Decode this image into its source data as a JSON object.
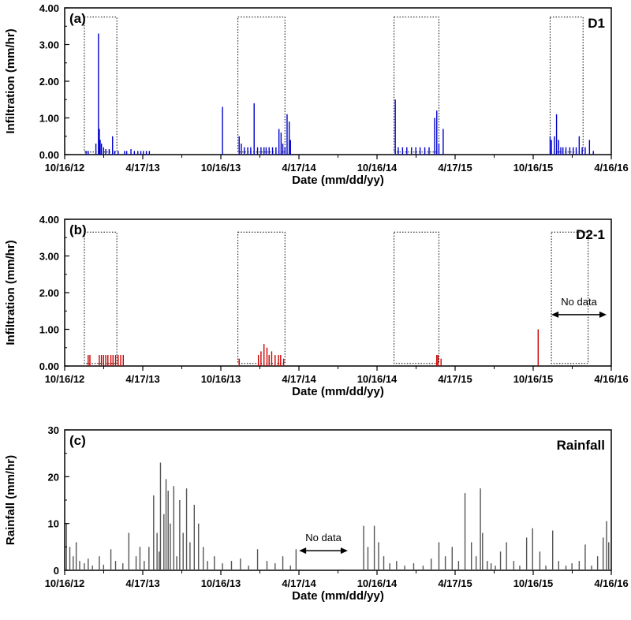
{
  "chart_data": [
    {
      "type": "bar",
      "panel_label": "(a)",
      "series_label": "D1",
      "xlabel": "Date (mm/dd/yy)",
      "ylabel": "Infiltration (mm/hr)",
      "ylim": [
        0,
        4
      ],
      "yticks": [
        "0.00",
        "1.00",
        "2.00",
        "3.00",
        "4.00"
      ],
      "xlim": [
        "2012-10-16",
        "2016-04-16"
      ],
      "xticks": [
        "10/16/12",
        "4/17/13",
        "10/16/13",
        "4/17/14",
        "10/16/14",
        "4/17/15",
        "10/16/15",
        "4/16/16"
      ],
      "color": "#0000cc",
      "boxes": [
        {
          "start": "2012-12-01",
          "end": "2013-02-15",
          "ymax": 3.75
        },
        {
          "start": "2013-11-25",
          "end": "2014-03-15",
          "ymax": 3.75
        },
        {
          "start": "2014-11-25",
          "end": "2015-03-10",
          "ymax": 3.75
        },
        {
          "start": "2015-11-25",
          "end": "2016-02-10",
          "ymax": 3.75
        }
      ],
      "series": [
        {
          "x": [
            "2012-12-05",
            "2012-12-10",
            "2012-12-28",
            "2013-01-03",
            "2013-01-05",
            "2013-01-07",
            "2013-01-10",
            "2013-01-15",
            "2013-01-20",
            "2013-01-28",
            "2013-02-05",
            "2013-02-10",
            "2013-02-18",
            "2013-03-05",
            "2013-03-10",
            "2013-03-20",
            "2013-03-28",
            "2013-04-05",
            "2013-04-12",
            "2013-04-18",
            "2013-04-25",
            "2013-05-02",
            "2013-10-20",
            "2013-11-28",
            "2013-12-03",
            "2013-12-10",
            "2013-12-18",
            "2013-12-25",
            "2014-01-02",
            "2014-01-10",
            "2014-01-18",
            "2014-01-25",
            "2014-01-30",
            "2014-02-06",
            "2014-02-14",
            "2014-02-22",
            "2014-03-01",
            "2014-03-06",
            "2014-03-10",
            "2014-03-15",
            "2014-03-20",
            "2014-03-25",
            "2014-03-28",
            "2014-11-28",
            "2014-12-05",
            "2014-12-15",
            "2014-12-25",
            "2015-01-05",
            "2015-01-15",
            "2015-01-25",
            "2015-02-05",
            "2015-02-15",
            "2015-02-28",
            "2015-03-05",
            "2015-03-10",
            "2015-03-20",
            "2015-11-25",
            "2015-11-28",
            "2015-12-05",
            "2015-12-10",
            "2015-12-15",
            "2015-12-20",
            "2015-12-25",
            "2016-01-01",
            "2016-01-10",
            "2016-01-18",
            "2016-01-25",
            "2016-02-01",
            "2016-02-08",
            "2016-02-15",
            "2016-02-25",
            "2016-03-05"
          ],
          "values": [
            0.1,
            0.1,
            0.3,
            3.3,
            0.7,
            0.4,
            0.3,
            0.2,
            0.15,
            0.15,
            0.5,
            0.1,
            0.1,
            0.1,
            0.1,
            0.15,
            0.1,
            0.1,
            0.1,
            0.1,
            0.1,
            0.1,
            1.3,
            0.5,
            0.3,
            0.2,
            0.2,
            0.2,
            1.4,
            0.2,
            0.2,
            0.2,
            0.2,
            0.2,
            0.2,
            0.2,
            0.7,
            0.6,
            0.3,
            0.2,
            1.1,
            0.9,
            0.4,
            1.5,
            0.2,
            0.2,
            0.2,
            0.2,
            0.2,
            0.2,
            0.2,
            0.2,
            1.0,
            1.2,
            0.3,
            0.7,
            0.5,
            0.4,
            0.5,
            1.1,
            0.4,
            0.2,
            0.2,
            0.2,
            0.2,
            0.2,
            0.2,
            0.5,
            0.2,
            0.2,
            0.4,
            0.1
          ]
        }
      ]
    },
    {
      "type": "bar",
      "panel_label": "(b)",
      "series_label": "D2-1",
      "xlabel": "Date (mm/dd/yy)",
      "ylabel": "Infiltration (mm/hr)",
      "ylim": [
        0,
        4
      ],
      "yticks": [
        "0.00",
        "1.00",
        "2.00",
        "3.00",
        "4.00"
      ],
      "xlim": [
        "2012-10-16",
        "2016-04-16"
      ],
      "xticks": [
        "10/16/12",
        "4/17/13",
        "10/16/13",
        "4/17/14",
        "10/16/14",
        "4/17/15",
        "10/16/15",
        "4/16/16"
      ],
      "color": "#cc0000",
      "annotation": {
        "text": "No data",
        "start": "2015-11-28",
        "end": "2016-04-16",
        "y": 1.4
      },
      "boxes": [
        {
          "start": "2012-12-01",
          "end": "2013-02-15",
          "ymax": 3.65
        },
        {
          "start": "2013-11-25",
          "end": "2014-03-15",
          "ymax": 3.65
        },
        {
          "start": "2014-11-25",
          "end": "2015-03-10",
          "ymax": 3.65
        },
        {
          "start": "2015-11-28",
          "end": "2016-02-22",
          "ymax": 3.65
        }
      ],
      "series": [
        {
          "x": [
            "2012-12-10",
            "2012-12-14",
            "2013-01-05",
            "2013-01-10",
            "2013-01-15",
            "2013-01-20",
            "2013-01-25",
            "2013-02-01",
            "2013-02-06",
            "2013-02-12",
            "2013-02-18",
            "2013-02-24",
            "2013-03-02",
            "2013-11-28",
            "2014-01-12",
            "2014-01-18",
            "2014-01-25",
            "2014-02-01",
            "2014-02-06",
            "2014-02-12",
            "2014-02-20",
            "2014-02-28",
            "2014-03-05",
            "2014-03-12",
            "2015-03-05",
            "2015-03-08",
            "2015-03-15",
            "2015-10-28"
          ],
          "values": [
            0.3,
            0.3,
            0.3,
            0.3,
            0.3,
            0.3,
            0.3,
            0.3,
            0.3,
            0.3,
            0.3,
            0.3,
            0.3,
            0.2,
            0.3,
            0.4,
            0.6,
            0.5,
            0.3,
            0.4,
            0.3,
            0.3,
            0.3,
            0.2,
            0.3,
            0.3,
            0.2,
            1.0
          ]
        }
      ]
    },
    {
      "type": "bar",
      "panel_label": "(c)",
      "series_label": "Rainfall",
      "xlabel": "Date (mm/dd/yy)",
      "ylabel": "Rainfall (mm/hr)",
      "ylim": [
        0,
        30
      ],
      "yticks": [
        "0",
        "10",
        "20",
        "30"
      ],
      "xlim": [
        "2012-10-16",
        "2016-04-16"
      ],
      "xticks": [
        "10/16/12",
        "4/17/13",
        "10/16/13",
        "4/17/14",
        "10/16/14",
        "4/17/15",
        "10/16/15",
        "4/16/16"
      ],
      "color": "#555555",
      "annotation": {
        "text": "No data",
        "start": "2014-04-17",
        "end": "2014-08-20",
        "y": 4.2
      },
      "series": [
        {
          "x": [
            "2012-10-20",
            "2012-10-28",
            "2012-11-05",
            "2012-11-12",
            "2012-11-20",
            "2012-12-01",
            "2012-12-10",
            "2012-12-20",
            "2013-01-05",
            "2013-01-15",
            "2013-02-01",
            "2013-02-12",
            "2013-03-01",
            "2013-03-15",
            "2013-04-01",
            "2013-04-10",
            "2013-04-20",
            "2013-05-01",
            "2013-05-12",
            "2013-05-20",
            "2013-05-25",
            "2013-05-28",
            "2013-06-05",
            "2013-06-10",
            "2013-06-15",
            "2013-06-20",
            "2013-06-28",
            "2013-07-05",
            "2013-07-12",
            "2013-07-20",
            "2013-07-28",
            "2013-08-05",
            "2013-08-15",
            "2013-08-25",
            "2013-09-05",
            "2013-09-15",
            "2013-10-01",
            "2013-10-20",
            "2013-11-10",
            "2013-12-01",
            "2013-12-20",
            "2014-01-10",
            "2014-02-01",
            "2014-02-20",
            "2014-03-10",
            "2014-03-28",
            "2014-04-10",
            "2014-09-15",
            "2014-09-25",
            "2014-10-10",
            "2014-10-20",
            "2014-11-01",
            "2014-11-15",
            "2014-12-01",
            "2014-12-20",
            "2015-01-10",
            "2015-02-01",
            "2015-02-20",
            "2015-03-10",
            "2015-03-25",
            "2015-04-10",
            "2015-04-25",
            "2015-05-10",
            "2015-05-25",
            "2015-06-05",
            "2015-06-15",
            "2015-06-20",
            "2015-07-01",
            "2015-07-10",
            "2015-07-20",
            "2015-08-01",
            "2015-08-15",
            "2015-09-01",
            "2015-09-15",
            "2015-10-01",
            "2015-10-15",
            "2015-11-01",
            "2015-11-15",
            "2015-12-01",
            "2015-12-15",
            "2016-01-01",
            "2016-01-15",
            "2016-02-01",
            "2016-02-15",
            "2016-03-01",
            "2016-03-15",
            "2016-03-28",
            "2016-04-05",
            "2016-04-10"
          ],
          "values": [
            10,
            5,
            3,
            6,
            2,
            1.5,
            2.5,
            1,
            3,
            1.2,
            4.5,
            2,
            1.5,
            8,
            3,
            5,
            2,
            5,
            16,
            8,
            4,
            23,
            12,
            19.5,
            17,
            10,
            18,
            3,
            15,
            8,
            17.5,
            6,
            14,
            10,
            5,
            2,
            3,
            1.5,
            2,
            2.5,
            1,
            4.5,
            2,
            1.5,
            3,
            1,
            4.5,
            9.5,
            5,
            9.5,
            6,
            3,
            1.5,
            2,
            1,
            1.5,
            1,
            2.5,
            6,
            3,
            5,
            2,
            16.5,
            6,
            3,
            17.5,
            8,
            2,
            1.5,
            1,
            4,
            6,
            2,
            1,
            7,
            9,
            4,
            1,
            8.5,
            2,
            1,
            1.5,
            2,
            5.5,
            1,
            3,
            7,
            10.5,
            6
          ]
        }
      ]
    }
  ]
}
